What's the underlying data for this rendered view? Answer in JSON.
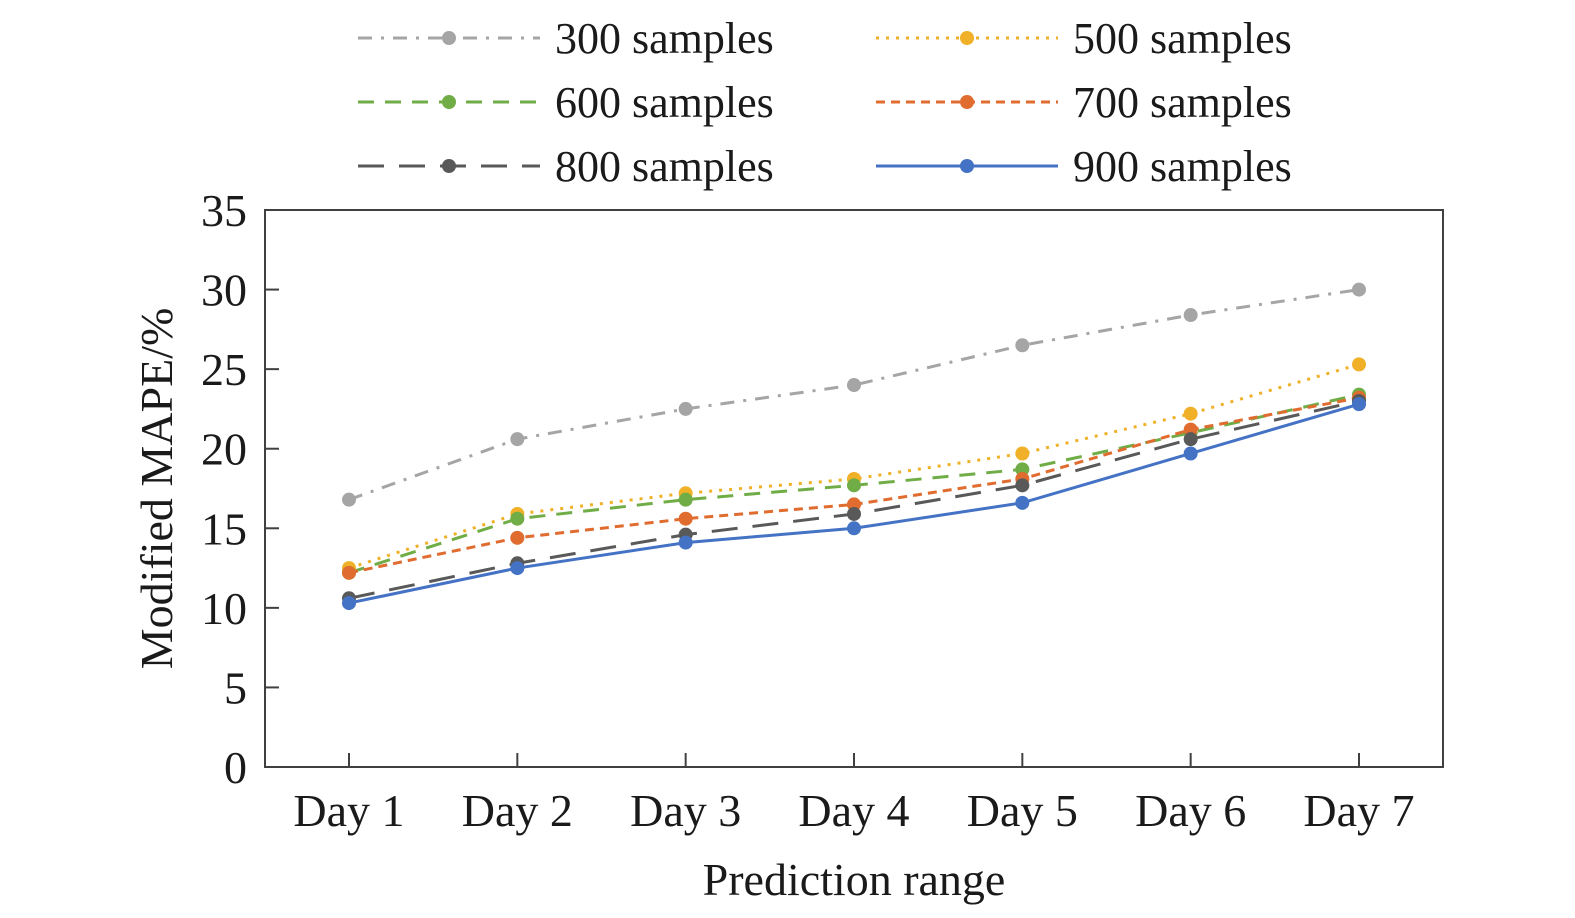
{
  "chart_data": {
    "type": "line",
    "xlabel": "Prediction range",
    "ylabel": "Modified MAPE/%",
    "categories": [
      "Day 1",
      "Day 2",
      "Day 3",
      "Day 4",
      "Day 5",
      "Day 6",
      "Day 7"
    ],
    "ylim": [
      0,
      35
    ],
    "yticks": [
      0,
      5,
      10,
      15,
      20,
      25,
      30,
      35
    ],
    "grid": false,
    "legend_position": "top",
    "series": [
      {
        "name": "300 samples",
        "color": "#a5a5a5",
        "dash": "dash-dot",
        "values": [
          16.8,
          20.6,
          22.5,
          24.0,
          26.5,
          28.4,
          30.0
        ]
      },
      {
        "name": "500 samples",
        "color": "#f0b129",
        "dash": "dotted",
        "values": [
          12.5,
          15.9,
          17.2,
          18.1,
          19.7,
          22.2,
          25.3
        ]
      },
      {
        "name": "600 samples",
        "color": "#70ad47",
        "dash": "dashed",
        "values": [
          12.2,
          15.6,
          16.8,
          17.7,
          18.7,
          21.0,
          23.4
        ]
      },
      {
        "name": "700 samples",
        "color": "#e06c2f",
        "dash": "short-dash",
        "values": [
          12.2,
          14.4,
          15.6,
          16.5,
          18.1,
          21.2,
          23.2
        ]
      },
      {
        "name": "800 samples",
        "color": "#595959",
        "dash": "long-dash",
        "values": [
          10.6,
          12.8,
          14.6,
          15.9,
          17.7,
          20.6,
          23.0
        ]
      },
      {
        "name": "900 samples",
        "color": "#4472c4",
        "dash": "solid",
        "values": [
          10.3,
          12.5,
          14.1,
          15.0,
          16.6,
          19.7,
          22.8
        ]
      }
    ]
  }
}
